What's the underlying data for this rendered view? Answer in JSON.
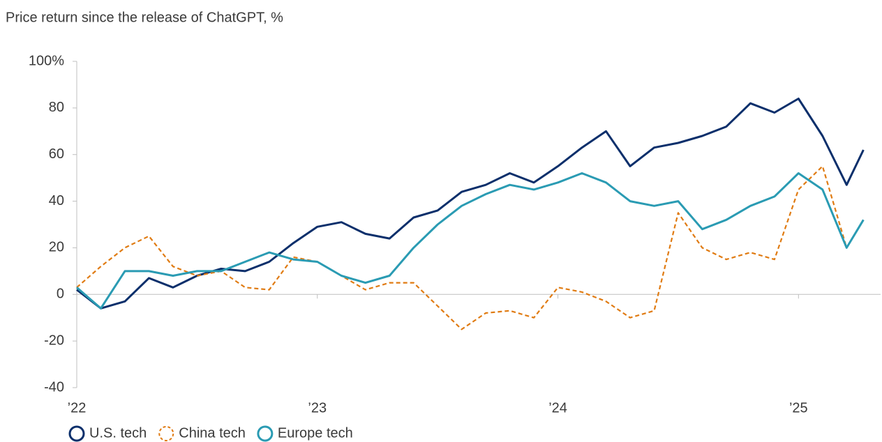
{
  "chart_data": {
    "type": "line",
    "title": "Price return since the release of ChatGPT, %",
    "x": [
      2022.0,
      2022.1,
      2022.2,
      2022.3,
      2022.4,
      2022.5,
      2022.6,
      2022.7,
      2022.8,
      2022.9,
      2023.0,
      2023.1,
      2023.2,
      2023.3,
      2023.4,
      2023.5,
      2023.6,
      2023.7,
      2023.8,
      2023.9,
      2024.0,
      2024.1,
      2024.2,
      2024.3,
      2024.4,
      2024.5,
      2024.6,
      2024.7,
      2024.8,
      2024.9,
      2025.0,
      2025.1,
      2025.2,
      2025.27
    ],
    "series": [
      {
        "name": "U.S. tech",
        "color": "#0b2f6b",
        "dashed": false,
        "values": [
          2,
          -6,
          -3,
          7,
          3,
          8,
          11,
          10,
          14,
          22,
          29,
          31,
          26,
          24,
          33,
          36,
          44,
          47,
          52,
          48,
          55,
          63,
          70,
          55,
          63,
          65,
          68,
          72,
          82,
          78,
          84,
          68,
          47,
          62
        ]
      },
      {
        "name": "China tech",
        "color": "#e07b12",
        "dashed": true,
        "values": [
          3,
          12,
          20,
          25,
          12,
          8,
          10,
          3,
          2,
          16,
          14,
          8,
          2,
          5,
          5,
          -5,
          -15,
          -8,
          -7,
          -10,
          3,
          1,
          -3,
          -10,
          -7,
          35,
          20,
          15,
          18,
          15,
          45,
          55,
          20,
          32
        ]
      },
      {
        "name": "Europe tech",
        "color": "#2a9bb3",
        "dashed": false,
        "values": [
          3,
          -6,
          10,
          10,
          8,
          10,
          10,
          14,
          18,
          15,
          14,
          8,
          5,
          8,
          20,
          30,
          38,
          43,
          47,
          45,
          48,
          52,
          48,
          40,
          38,
          40,
          28,
          32,
          38,
          42,
          52,
          45,
          20,
          32
        ]
      }
    ],
    "xlim": [
      2022,
      2025.35
    ],
    "xticks": [
      {
        "value": 2022,
        "label": "’22"
      },
      {
        "value": 2023,
        "label": "’23"
      },
      {
        "value": 2024,
        "label": "’24"
      },
      {
        "value": 2025,
        "label": "’25"
      }
    ],
    "ylim": [
      -40,
      100
    ],
    "yticks": [
      {
        "value": 100,
        "label": "100%"
      },
      80,
      60,
      40,
      20,
      0,
      -20,
      -40
    ],
    "grid": false,
    "legend": "bottom-left"
  }
}
